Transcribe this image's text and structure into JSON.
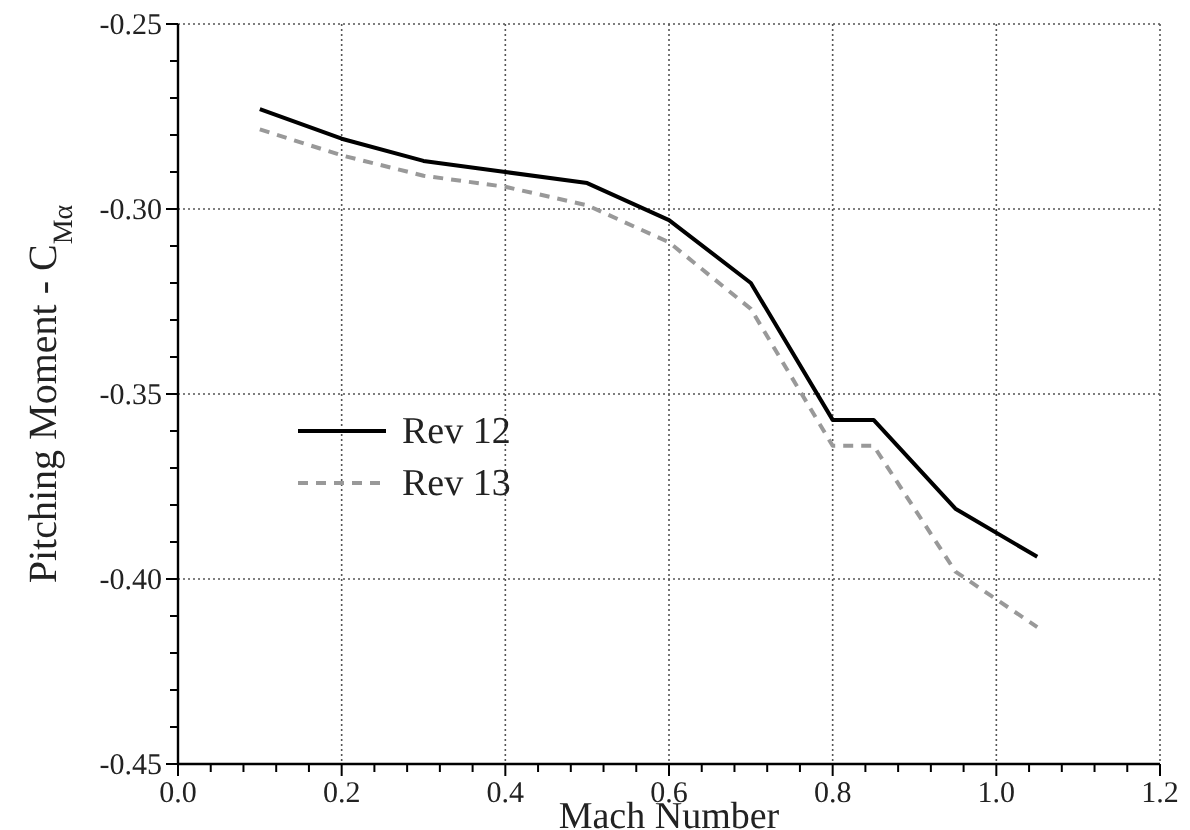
{
  "chart_data": {
    "type": "line",
    "xlabel": "Mach Number",
    "ylabel": "Pitching Moment - C$_{Mα}$",
    "xlim": [
      0,
      1.2
    ],
    "ylim": [
      -0.45,
      -0.25
    ],
    "xticks": [
      {
        "value": 0,
        "label": "0.0"
      },
      {
        "value": 0.04,
        "label": null
      },
      {
        "value": 0.08,
        "label": null
      },
      {
        "value": 0.12,
        "label": null
      },
      {
        "value": 0.16,
        "label": null
      },
      {
        "value": 0.2,
        "label": "0.2"
      },
      {
        "value": 0.24,
        "label": null
      },
      {
        "value": 0.28,
        "label": null
      },
      {
        "value": 0.32,
        "label": null
      },
      {
        "value": 0.36,
        "label": null
      },
      {
        "value": 0.4,
        "label": "0.4"
      },
      {
        "value": 0.44,
        "label": null
      },
      {
        "value": 0.48,
        "label": null
      },
      {
        "value": 0.52,
        "label": null
      },
      {
        "value": 0.56,
        "label": null
      },
      {
        "value": 0.6,
        "label": "0.6"
      },
      {
        "value": 0.64,
        "label": null
      },
      {
        "value": 0.68,
        "label": null
      },
      {
        "value": 0.72,
        "label": null
      },
      {
        "value": 0.76,
        "label": null
      },
      {
        "value": 0.8,
        "label": "0.8"
      },
      {
        "value": 0.84,
        "label": null
      },
      {
        "value": 0.88,
        "label": null
      },
      {
        "value": 0.92,
        "label": null
      },
      {
        "value": 0.96,
        "label": null
      },
      {
        "value": 1.0,
        "label": "1.0"
      },
      {
        "value": 1.04,
        "label": null
      },
      {
        "value": 1.08,
        "label": null
      },
      {
        "value": 1.12,
        "label": null
      },
      {
        "value": 1.16,
        "label": null
      },
      {
        "value": 1.2,
        "label": "1.2"
      }
    ],
    "yticks": [
      {
        "value": -0.45,
        "label": "-0.45"
      },
      {
        "value": -0.44,
        "label": null
      },
      {
        "value": -0.43,
        "label": null
      },
      {
        "value": -0.42,
        "label": null
      },
      {
        "value": -0.41,
        "label": null
      },
      {
        "value": -0.4,
        "label": "-0.40"
      },
      {
        "value": -0.39,
        "label": null
      },
      {
        "value": -0.38,
        "label": null
      },
      {
        "value": -0.37,
        "label": null
      },
      {
        "value": -0.36,
        "label": null
      },
      {
        "value": -0.35,
        "label": "-0.35"
      },
      {
        "value": -0.34,
        "label": null
      },
      {
        "value": -0.33,
        "label": null
      },
      {
        "value": -0.32,
        "label": null
      },
      {
        "value": -0.31,
        "label": null
      },
      {
        "value": -0.3,
        "label": "-0.30"
      },
      {
        "value": -0.29,
        "label": null
      },
      {
        "value": -0.28,
        "label": null
      },
      {
        "value": -0.27,
        "label": null
      },
      {
        "value": -0.26,
        "label": null
      },
      {
        "value": -0.25,
        "label": "-0.25"
      }
    ],
    "grid": true,
    "legend": "left",
    "marker": "none",
    "x": [
      0.1,
      0.2,
      0.3,
      0.4,
      0.5,
      0.6,
      0.7,
      0.8,
      0.85,
      0.95,
      1.05
    ],
    "series": [
      {
        "name": "Rev 12",
        "color": "#000000",
        "line_style": "solid",
        "values": [
          -0.273,
          -0.281,
          -0.287,
          -0.29,
          -0.293,
          -0.303,
          -0.32,
          -0.357,
          -0.357,
          -0.381,
          -0.394
        ]
      },
      {
        "name": "Rev 13",
        "color": "#999999",
        "line_style": "dashed",
        "values": [
          -0.2785,
          -0.2855,
          -0.291,
          -0.294,
          -0.299,
          -0.309,
          -0.327,
          -0.364,
          -0.364,
          -0.398,
          -0.413
        ]
      }
    ]
  }
}
